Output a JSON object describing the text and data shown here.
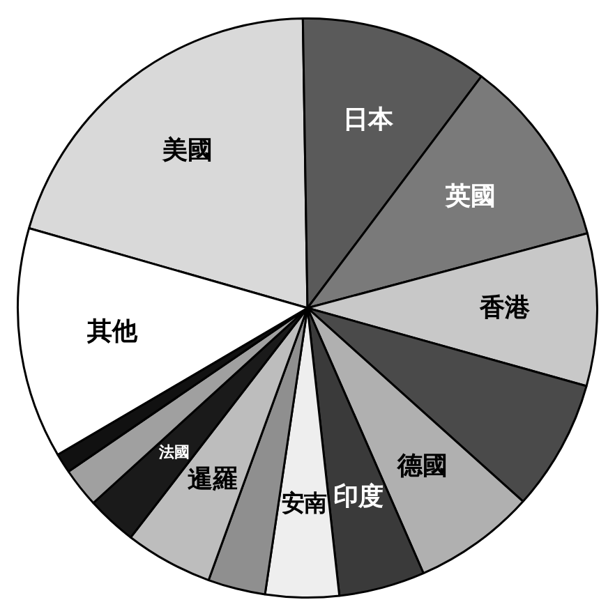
{
  "chart_data": {
    "type": "pie",
    "categories": [
      "美國",
      "日本",
      "英國",
      "香港",
      null,
      "德國",
      "印度",
      "安南",
      null,
      "暹羅",
      "法國",
      null,
      null,
      "其他"
    ],
    "values": [
      20.3,
      10.5,
      10.6,
      8.5,
      7.3,
      6.8,
      4.8,
      4.1,
      3.2,
      4.9,
      2.8,
      2.2,
      1.1,
      12.9
    ],
    "colors": [
      "#d9d9d9",
      "#5a5a5a",
      "#7a7a7a",
      "#c8c8c8",
      "#4a4a4a",
      "#b0b0b0",
      "#3a3a3a",
      "#eeeeee",
      "#8f8f8f",
      "#bdbdbd",
      "#1a1a1a",
      "#a0a0a0",
      "#111111",
      "#ffffff"
    ],
    "legend": false
  }
}
